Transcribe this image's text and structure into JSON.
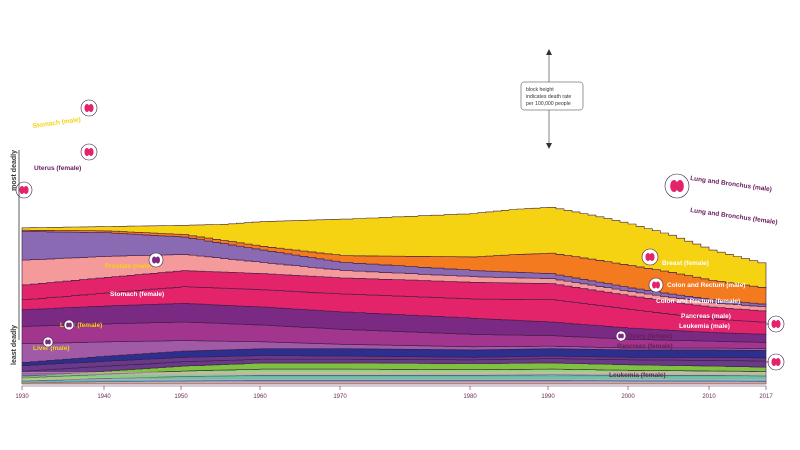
{
  "chart_data": {
    "type": "area",
    "title": "",
    "xlabel": "",
    "ylabel": "",
    "y_axis_labels": {
      "top": "most deadly",
      "bottom": "least deadly"
    },
    "annotation": [
      "block height",
      "indicates death rate",
      "per 100,000 people"
    ],
    "x_ticks": [
      "1930",
      "1940",
      "1950",
      "1960",
      "1970",
      "1980",
      "1990",
      "2000",
      "2010",
      "2017"
    ],
    "xlim": [
      1930,
      2017
    ],
    "series": [
      {
        "name": "Lung and Bronchus (male)",
        "color": "#f5d312",
        "label_color": "#6a1b5a",
        "x": [
          1930,
          1940,
          1950,
          1955,
          1960,
          1970,
          1980,
          1985,
          1990,
          1995,
          2000,
          2005,
          2010,
          2017
        ],
        "values": [
          4,
          7,
          15,
          26,
          40,
          59,
          70,
          73,
          74,
          71,
          67,
          60,
          49,
          38
        ]
      },
      {
        "name": "Lung and Bronchus (female)",
        "color": "#f47a20",
        "label_color": "#6a1b5a",
        "x": [
          1930,
          1940,
          1950,
          1955,
          1960,
          1970,
          1980,
          1985,
          1990,
          1995,
          2000,
          2005,
          2010,
          2017
        ],
        "values": [
          2,
          3,
          4,
          5,
          6,
          11,
          22,
          28,
          33,
          35,
          36,
          35,
          31,
          26
        ]
      },
      {
        "name": "Breast (female)",
        "color": "#e3246b",
        "label_color": "#ffffff",
        "x": [
          1930,
          1940,
          1950,
          1960,
          1970,
          1980,
          1990,
          1995,
          2000,
          2005,
          2010,
          2017
        ],
        "values": [
          24,
          25,
          26,
          26,
          26,
          27,
          26,
          24,
          22,
          20,
          19,
          18
        ]
      },
      {
        "name": "Colon and Rectum (male)",
        "color": "#7a2a82",
        "label_color": "#ffffff",
        "x": [
          1930,
          1940,
          1950,
          1960,
          1970,
          1980,
          1990,
          2000,
          2010,
          2017
        ],
        "values": [
          27,
          29,
          30,
          29,
          28,
          26,
          22,
          18,
          14,
          13
        ]
      },
      {
        "name": "Colon and Rectum (female)",
        "color": "#a2358e",
        "label_color": "#ffffff",
        "x": [
          1930,
          1940,
          1950,
          1960,
          1970,
          1980,
          1990,
          2000,
          2010,
          2017
        ],
        "values": [
          28,
          29,
          30,
          27,
          24,
          20,
          17,
          14,
          11,
          10
        ]
      },
      {
        "name": "Pancreas (male)",
        "color": "#2d2f8f",
        "label_color": "#ffffff",
        "x": [
          1930,
          1940,
          1950,
          1960,
          1970,
          1980,
          1990,
          2000,
          2010,
          2017
        ],
        "values": [
          5,
          8,
          10,
          11,
          12,
          12,
          12,
          12,
          12,
          12
        ]
      },
      {
        "name": "Leukemia (male)",
        "color": "#7fc241",
        "label_color": "#ffffff",
        "x": [
          1930,
          1940,
          1950,
          1960,
          1970,
          1980,
          1990,
          2000,
          2010,
          2017
        ],
        "values": [
          3,
          5,
          8,
          10,
          10,
          10,
          10,
          9,
          8,
          7
        ]
      },
      {
        "name": "Ovary (female)",
        "color": "#ffffff",
        "label_color": "#6a1b5a",
        "x": [
          1930,
          1940,
          1950,
          1960,
          1970,
          1980,
          1990,
          2000,
          2010,
          2017
        ],
        "values": [
          5,
          7,
          9,
          10,
          10,
          9,
          9,
          8,
          7,
          7
        ]
      },
      {
        "name": "Pancreas (female)",
        "color": "#ffffff",
        "label_color": "#6a1b5a",
        "x": [
          1930,
          1940,
          1950,
          1960,
          1970,
          1980,
          1990,
          2000,
          2010,
          2017
        ],
        "values": [
          3,
          5,
          7,
          8,
          8,
          8,
          9,
          9,
          9,
          9
        ]
      },
      {
        "name": "Leukemia (female)",
        "color": "#b884c4",
        "label_color": "#6a1b5a",
        "x": [
          1930,
          1940,
          1950,
          1960,
          1970,
          1980,
          1990,
          2000,
          2010,
          2017
        ],
        "values": [
          2,
          4,
          5,
          6,
          6,
          6,
          6,
          5,
          5,
          4
        ]
      },
      {
        "name": "Stomach (male)",
        "color": "#8a6ab2",
        "label_color": "#f5d312",
        "x": [
          1930,
          1940,
          1950,
          1960,
          1970,
          1980,
          1990,
          2000,
          2010,
          2017
        ],
        "values": [
          46,
          38,
          28,
          20,
          13,
          10,
          8,
          6,
          5,
          4
        ]
      },
      {
        "name": "Uterus (female)",
        "color": "#f59a9a",
        "label_color": "#6a1b5a",
        "x": [
          1930,
          1940,
          1950,
          1960,
          1970,
          1980,
          1990,
          2000,
          2010,
          2017
        ],
        "values": [
          40,
          34,
          26,
          18,
          12,
          9,
          8,
          7,
          7,
          7
        ]
      },
      {
        "name": "Prostate (male)",
        "color": "#e3246b",
        "label_color": "#f5d312",
        "x": [
          1930,
          1940,
          1950,
          1960,
          1970,
          1980,
          1990,
          2000,
          2010,
          2017
        ],
        "values": [
          16,
          21,
          27,
          28,
          29,
          31,
          36,
          30,
          22,
          19
        ]
      },
      {
        "name": "Stomach (female)",
        "color": "#a05aa6",
        "label_color": "#ffffff",
        "x": [
          1930,
          1940,
          1950,
          1960,
          1970,
          1980,
          1990,
          2000,
          2010,
          2017
        ],
        "values": [
          30,
          23,
          17,
          11,
          7,
          5,
          4,
          3,
          3,
          3
        ]
      },
      {
        "name": "Liver (female)",
        "color": "#6a3a8a",
        "label_color": "#f5d312",
        "x": [
          1930,
          1940,
          1950,
          1960,
          1970,
          1980,
          1990,
          2000,
          2010,
          2017
        ],
        "values": [
          9,
          8,
          7,
          6,
          5,
          4,
          4,
          4,
          5,
          5
        ]
      },
      {
        "name": "Liver (male)",
        "color": "#6a3a8a",
        "label_color": "#f5d312",
        "x": [
          1930,
          1940,
          1950,
          1960,
          1970,
          1980,
          1990,
          2000,
          2010,
          2017
        ],
        "values": [
          8,
          8,
          7,
          6,
          6,
          6,
          7,
          8,
          9,
          10
        ]
      }
    ]
  },
  "icons": [
    {
      "name": "stomach-icon",
      "color": "#e3246b"
    },
    {
      "name": "uterus-icon",
      "color": "#e3246b"
    },
    {
      "name": "prostate-icon",
      "color": "#7a2a82"
    },
    {
      "name": "liver-icon",
      "color": "#7a2a82"
    },
    {
      "name": "lungs-icon",
      "color": "#e3246b"
    },
    {
      "name": "breast-icon",
      "color": "#e3246b"
    },
    {
      "name": "colon-icon",
      "color": "#e3246b"
    },
    {
      "name": "ovary-icon",
      "color": "#7a2a82"
    },
    {
      "name": "liver-side-icon",
      "color": "#e3246b"
    },
    {
      "name": "pancreas-side-icon",
      "color": "#e3246b"
    }
  ]
}
